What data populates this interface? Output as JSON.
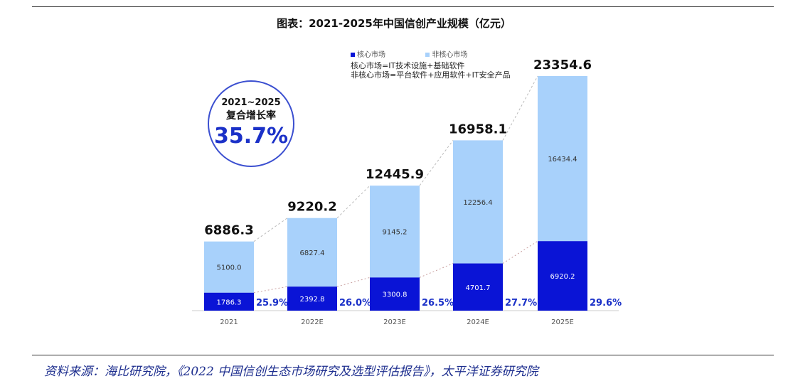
{
  "chart_data": {
    "type": "bar",
    "stacked": true,
    "title": "图表：2021-2025年中国信创产业规模（亿元）",
    "categories": [
      "2021",
      "2022E",
      "2023E",
      "2024E",
      "2025E"
    ],
    "series": [
      {
        "name": "核心市场",
        "color": "#0a14d6",
        "values": [
          1786.3,
          2392.8,
          3300.8,
          4701.7,
          6920.2
        ]
      },
      {
        "name": "非核心市场",
        "color": "#a8d1fb",
        "values": [
          5100.0,
          6827.4,
          9145.2,
          12256.4,
          16434.4
        ]
      }
    ],
    "totals": [
      "6886.3",
      "9220.2",
      "12445.9",
      "16958.1",
      "23354.6"
    ],
    "core_labels": [
      "1786.3",
      "2392.8",
      "3300.8",
      "4701.7",
      "6920.2"
    ],
    "noncore_labels": [
      "5100.0",
      "6827.4",
      "9145.2",
      "12256.4",
      "16434.4"
    ],
    "core_share": [
      "25.9%",
      "26.0%",
      "26.5%",
      "27.7%",
      "29.6%"
    ],
    "legend_position": "top",
    "notes": [
      "核心市场=IT技术设施+基础软件",
      "非核心市场=平台软件+应用软件+IT安全产品"
    ],
    "cagr": {
      "line1": "2021~2025",
      "line2": "复合增长率",
      "value": "35.7%"
    },
    "grid": false
  },
  "source": "资料来源：海比研究院，《2022 中国信创生态市场研究及选型评估报告》，太平洋证券研究院"
}
